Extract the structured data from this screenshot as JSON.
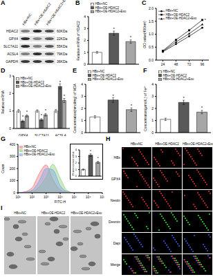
{
  "figure": {
    "A": {
      "label": "A",
      "columns": [
        "HBx+NC",
        "HBx+OE-HDAC2",
        "HBx+OE-HDAC2+Exo"
      ],
      "rows": [
        {
          "protein": "HDAC2",
          "size": "60KDa"
        },
        {
          "protein": "GPX4",
          "size": "22KDa"
        },
        {
          "protein": "SLC7A11",
          "size": "55KDa"
        },
        {
          "protein": "ACSL4",
          "size": "79KDa"
        },
        {
          "protein": "GAPDH",
          "size": "36KDa"
        }
      ]
    },
    "H": {
      "label": "H",
      "columns": [
        "HBx+NC",
        "HBx+OE-HDAC2",
        "HBx+OE-HDAC2+Exo"
      ],
      "rows": [
        "HBx",
        "GPX4",
        "Nestin",
        "Desmin",
        "Dapi",
        "Merge"
      ]
    },
    "I": {
      "label": "I",
      "columns": [
        "HBx+NC",
        "HBx+OE-HDAC2",
        "HBx+OE-HDAC2+Exo"
      ]
    }
  },
  "chart_data": [
    {
      "label": "B",
      "type": "bar",
      "y_label": "Relative mRNA of HDAC2",
      "categories": [
        "HBx+NC",
        "HBx+OE-HDAC2",
        "HBx+OE-HDAC2+Exo"
      ],
      "values": [
        1.0,
        2.6,
        1.9
      ],
      "errors": [
        0.08,
        0.18,
        0.14
      ],
      "colors": [
        "#ffffff",
        "#595959",
        "#a6a6a6"
      ],
      "ylim": [
        0,
        4
      ],
      "yticks": [
        0,
        1,
        2,
        3,
        4
      ],
      "legend": "top-left",
      "tick_labels": "y",
      "annotations": [
        "*",
        "*"
      ]
    },
    {
      "label": "C",
      "type": "line",
      "y_label": "OD value(450nm)",
      "x": [
        24,
        48,
        72,
        96
      ],
      "xlim": [
        12,
        108
      ],
      "xticks": [
        24,
        48,
        72,
        96
      ],
      "ylim": [
        0,
        2
      ],
      "yticks": [
        {
          "value": 0,
          "label": "0.0"
        },
        {
          "value": 0.5,
          "label": "0.5"
        },
        {
          "value": 1,
          "label": "1.0"
        },
        {
          "value": 1.5,
          "label": "1.5"
        },
        {
          "value": 2,
          "label": "2.0"
        }
      ],
      "series": [
        {
          "name": "HBx+NC",
          "color": "#000000",
          "marker": "circle",
          "values": [
            0.32,
            0.62,
            0.92,
            1.25
          ]
        },
        {
          "name": "HBx+OE-HDAC2",
          "color": "#000000",
          "marker": "square",
          "values": [
            0.36,
            0.78,
            1.15,
            1.55
          ]
        },
        {
          "name": "HBx+OE-HDAC2+Exo",
          "color": "#000000",
          "marker": "triangle",
          "values": [
            0.34,
            0.7,
            1.02,
            1.38
          ]
        }
      ],
      "legend": "top-left",
      "annotations": [
        "*"
      ]
    },
    {
      "label": "D",
      "type": "bar",
      "y_label": "Relative mRNA",
      "categories": [
        "GPX4",
        "SLC7A11",
        "ACSL4"
      ],
      "series": [
        {
          "name": "HBx+NC",
          "color": "#ffffff",
          "values": [
            1.0,
            1.0,
            1.0
          ],
          "errors": [
            0.08,
            0.07,
            0.09
          ]
        },
        {
          "name": "HBx+OE-HDAC2",
          "color": "#595959",
          "values": [
            0.42,
            0.5,
            2.4
          ],
          "errors": [
            0.05,
            0.06,
            0.15
          ]
        },
        {
          "name": "HBx+OE-HDAC2+Exo",
          "color": "#a6a6a6",
          "values": [
            0.72,
            0.78,
            1.6
          ],
          "errors": [
            0.06,
            0.07,
            0.12
          ]
        }
      ],
      "ylim": [
        0,
        3
      ],
      "yticks": [
        0,
        1,
        2,
        3
      ],
      "legend": "top-left",
      "annotations": [
        "*",
        "*",
        "*",
        "*",
        "*",
        "*"
      ]
    },
    {
      "label": "E",
      "type": "bar",
      "y_label": "Concentration(nmol/mg) of MDA",
      "categories": [
        "HBx+NC",
        "HBx+OE-HDAC2",
        "HBx+OE-HDAC2+Exo"
      ],
      "values": [
        1.3,
        2.7,
        1.9
      ],
      "errors": [
        0.1,
        0.2,
        0.15
      ],
      "colors": [
        "#ffffff",
        "#595959",
        "#a6a6a6"
      ],
      "ylim": [
        0,
        4
      ],
      "yticks": [
        0,
        1,
        2,
        3,
        4
      ],
      "legend": "top-left",
      "tick_labels": "y",
      "annotations": [
        "*",
        "*"
      ]
    },
    {
      "label": "F",
      "type": "bar",
      "y_label": "Concentration(μmol/L) of Fe²⁺",
      "categories": [
        "HBx+NC",
        "HBx+OE-HDAC2",
        "HBx+OE-HDAC2+Exo"
      ],
      "values": [
        1.1,
        2.5,
        1.7
      ],
      "errors": [
        0.1,
        0.18,
        0.14
      ],
      "colors": [
        "#ffffff",
        "#595959",
        "#a6a6a6"
      ],
      "ylim": [
        0,
        4
      ],
      "yticks": [
        0,
        1,
        2,
        3,
        4
      ],
      "legend": "top-left",
      "tick_labels": "y",
      "annotations": [
        "*",
        "*"
      ]
    },
    {
      "label": "G",
      "type": "area",
      "x_label": "FITC-H",
      "y_label": "Count",
      "log": "x",
      "x": [
        10,
        30,
        100,
        300,
        1000,
        3000,
        10000,
        30000,
        100000,
        10000000
      ],
      "xlim": [
        10,
        10000000
      ],
      "xticks": [
        {
          "value": 10,
          "label": "10¹"
        },
        {
          "value": 100,
          "label": "10²"
        },
        {
          "value": 1000,
          "label": "10³"
        },
        {
          "value": 10000,
          "label": "10⁴"
        },
        {
          "value": 100000,
          "label": "10⁵"
        },
        {
          "value": 1000000,
          "label": "10⁶"
        },
        {
          "value": 10000000,
          "label": "10⁷"
        }
      ],
      "ylim": [
        0,
        400
      ],
      "yticks": [
        0,
        100,
        200,
        300,
        400
      ],
      "series": [
        {
          "name": "HBx+NC",
          "color": "#f08080",
          "values": [
            0,
            8,
            40,
            150,
            230,
            110,
            25,
            4,
            0,
            0
          ]
        },
        {
          "name": "HBx+OE-HDAC2",
          "color": "#8fd07a",
          "values": [
            0,
            2,
            10,
            45,
            130,
            235,
            120,
            20,
            0,
            0
          ]
        },
        {
          "name": "HBx+OE-HDAC2+Exo",
          "color": "#7fa6ea",
          "values": [
            0,
            4,
            20,
            90,
            200,
            190,
            60,
            10,
            0,
            0
          ]
        }
      ],
      "legend": "top-left",
      "inset": {
        "type": "bar",
        "y_label": "Fluorescence value",
        "values": [
          1.0,
          3.2,
          2.1
        ],
        "errors": [
          0.1,
          0.2,
          0.15
        ],
        "colors": [
          "#ffffff",
          "#595959",
          "#a6a6a6"
        ],
        "ylim": [
          0,
          4
        ],
        "yticks": [
          0,
          1,
          2,
          3,
          4
        ],
        "tick_labels": "y",
        "annotations": [
          "*",
          "*"
        ]
      }
    }
  ]
}
